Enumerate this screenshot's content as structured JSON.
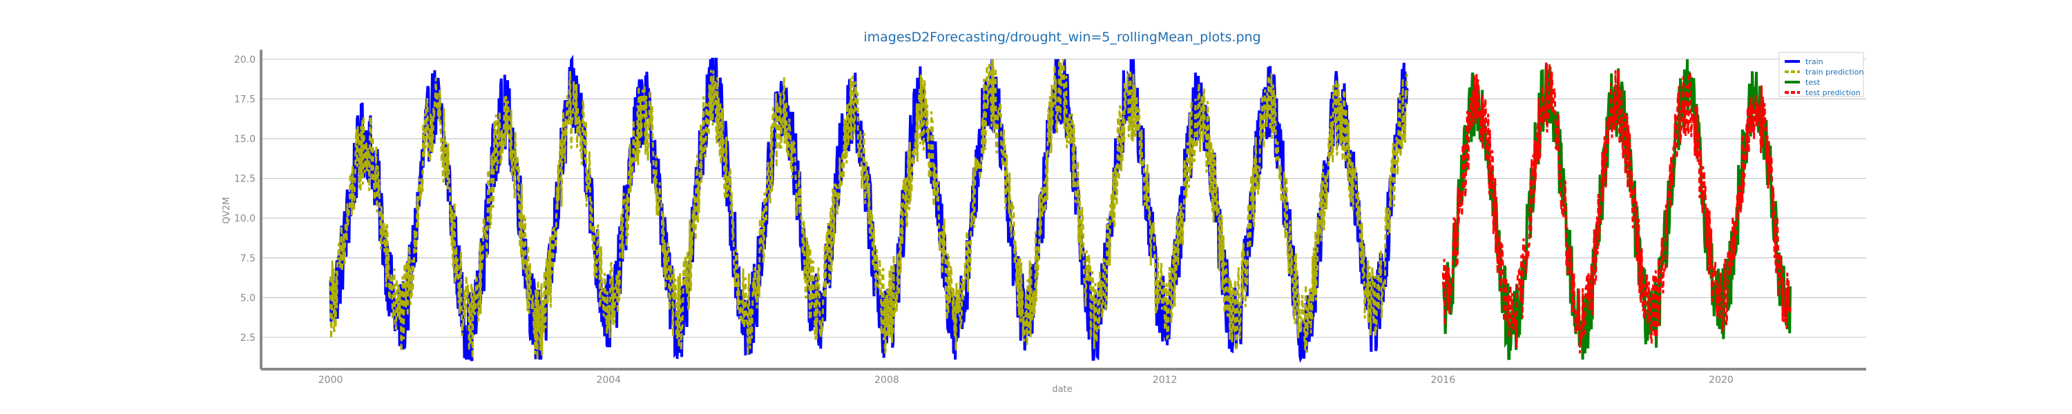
{
  "chart_data": {
    "type": "line",
    "title": "imagesD2Forecasting/drought_win=5_rollingMean_plots.png",
    "xlabel": "date",
    "ylabel": "QV2M",
    "x_ticks": [
      "2000",
      "2004",
      "2008",
      "2012",
      "2016",
      "2020"
    ],
    "y_ticks": [
      "2.5",
      "5.0",
      "7.5",
      "10.0",
      "12.5",
      "15.0",
      "17.5",
      "20.0"
    ],
    "ylim": [
      0.5,
      20.6
    ],
    "xlim": [
      "1999-01-01",
      "2022-02-01"
    ],
    "grid": "horizontal",
    "legend_position": "top-right",
    "x": [
      "2000-01-01",
      "2000-07-01",
      "2001-01-01",
      "2001-07-01",
      "2002-01-01",
      "2002-07-01",
      "2003-01-01",
      "2003-07-01",
      "2004-01-01",
      "2004-07-01",
      "2005-01-01",
      "2005-07-01",
      "2006-01-01",
      "2006-07-01",
      "2007-01-01",
      "2007-07-01",
      "2008-01-01",
      "2008-07-01",
      "2009-01-01",
      "2009-07-01",
      "2010-01-01",
      "2010-07-01",
      "2011-01-01",
      "2011-07-01",
      "2012-01-01",
      "2012-07-01",
      "2013-01-01",
      "2013-07-01",
      "2014-01-01",
      "2014-07-01",
      "2015-01-01",
      "2015-07-01",
      "2016-01-01",
      "2016-07-01",
      "2017-01-01",
      "2017-07-01",
      "2018-01-01",
      "2018-07-01",
      "2019-01-01",
      "2019-07-01",
      "2020-01-01",
      "2020-07-01",
      "2021-01-01"
    ],
    "series": [
      {
        "name": "train",
        "color": "#0000ff",
        "style": "solid",
        "segment": "train",
        "values": [
          5.0,
          15.0,
          3.5,
          17.0,
          3.0,
          16.5,
          3.0,
          17.5,
          4.0,
          17.0,
          3.5,
          18.0,
          3.5,
          17.0,
          4.0,
          17.0,
          3.5,
          17.0,
          3.5,
          18.0,
          4.0,
          18.5,
          3.5,
          18.0,
          4.0,
          17.0,
          3.5,
          17.5,
          3.0,
          17.0,
          4.0,
          18.0,
          null,
          null,
          null,
          null,
          null,
          null,
          null,
          null,
          null,
          null,
          null
        ]
      },
      {
        "name": "train prediction",
        "color": "#b0b000",
        "style": "dashed",
        "segment": "train",
        "values": [
          5.0,
          14.5,
          4.0,
          16.5,
          3.5,
          16.0,
          3.5,
          17.0,
          4.5,
          16.5,
          4.0,
          17.5,
          4.0,
          16.5,
          4.5,
          16.5,
          4.0,
          16.5,
          4.0,
          17.5,
          4.5,
          18.0,
          4.0,
          17.5,
          4.5,
          16.5,
          4.0,
          17.0,
          3.5,
          16.5,
          4.5,
          17.5,
          null,
          null,
          null,
          null,
          null,
          null,
          null,
          null,
          null,
          null,
          null
        ]
      },
      {
        "name": "test",
        "color": "#008000",
        "style": "solid",
        "segment": "test",
        "values": [
          null,
          null,
          null,
          null,
          null,
          null,
          null,
          null,
          null,
          null,
          null,
          null,
          null,
          null,
          null,
          null,
          null,
          null,
          null,
          null,
          null,
          null,
          null,
          null,
          null,
          null,
          null,
          null,
          null,
          null,
          null,
          null,
          4.5,
          17.5,
          3.0,
          18.0,
          3.0,
          17.5,
          3.5,
          18.0,
          4.5,
          17.5,
          3.5
        ]
      },
      {
        "name": "test prediction",
        "color": "#ff0000",
        "style": "dashed",
        "segment": "test",
        "values": [
          null,
          null,
          null,
          null,
          null,
          null,
          null,
          null,
          null,
          null,
          null,
          null,
          null,
          null,
          null,
          null,
          null,
          null,
          null,
          null,
          null,
          null,
          null,
          null,
          null,
          null,
          null,
          null,
          null,
          null,
          null,
          null,
          5.0,
          17.0,
          3.5,
          17.5,
          3.5,
          17.0,
          4.0,
          17.5,
          5.0,
          17.0,
          4.0
        ]
      }
    ],
    "noise_spread": {
      "train": 2.6,
      "test": 2.4
    }
  }
}
